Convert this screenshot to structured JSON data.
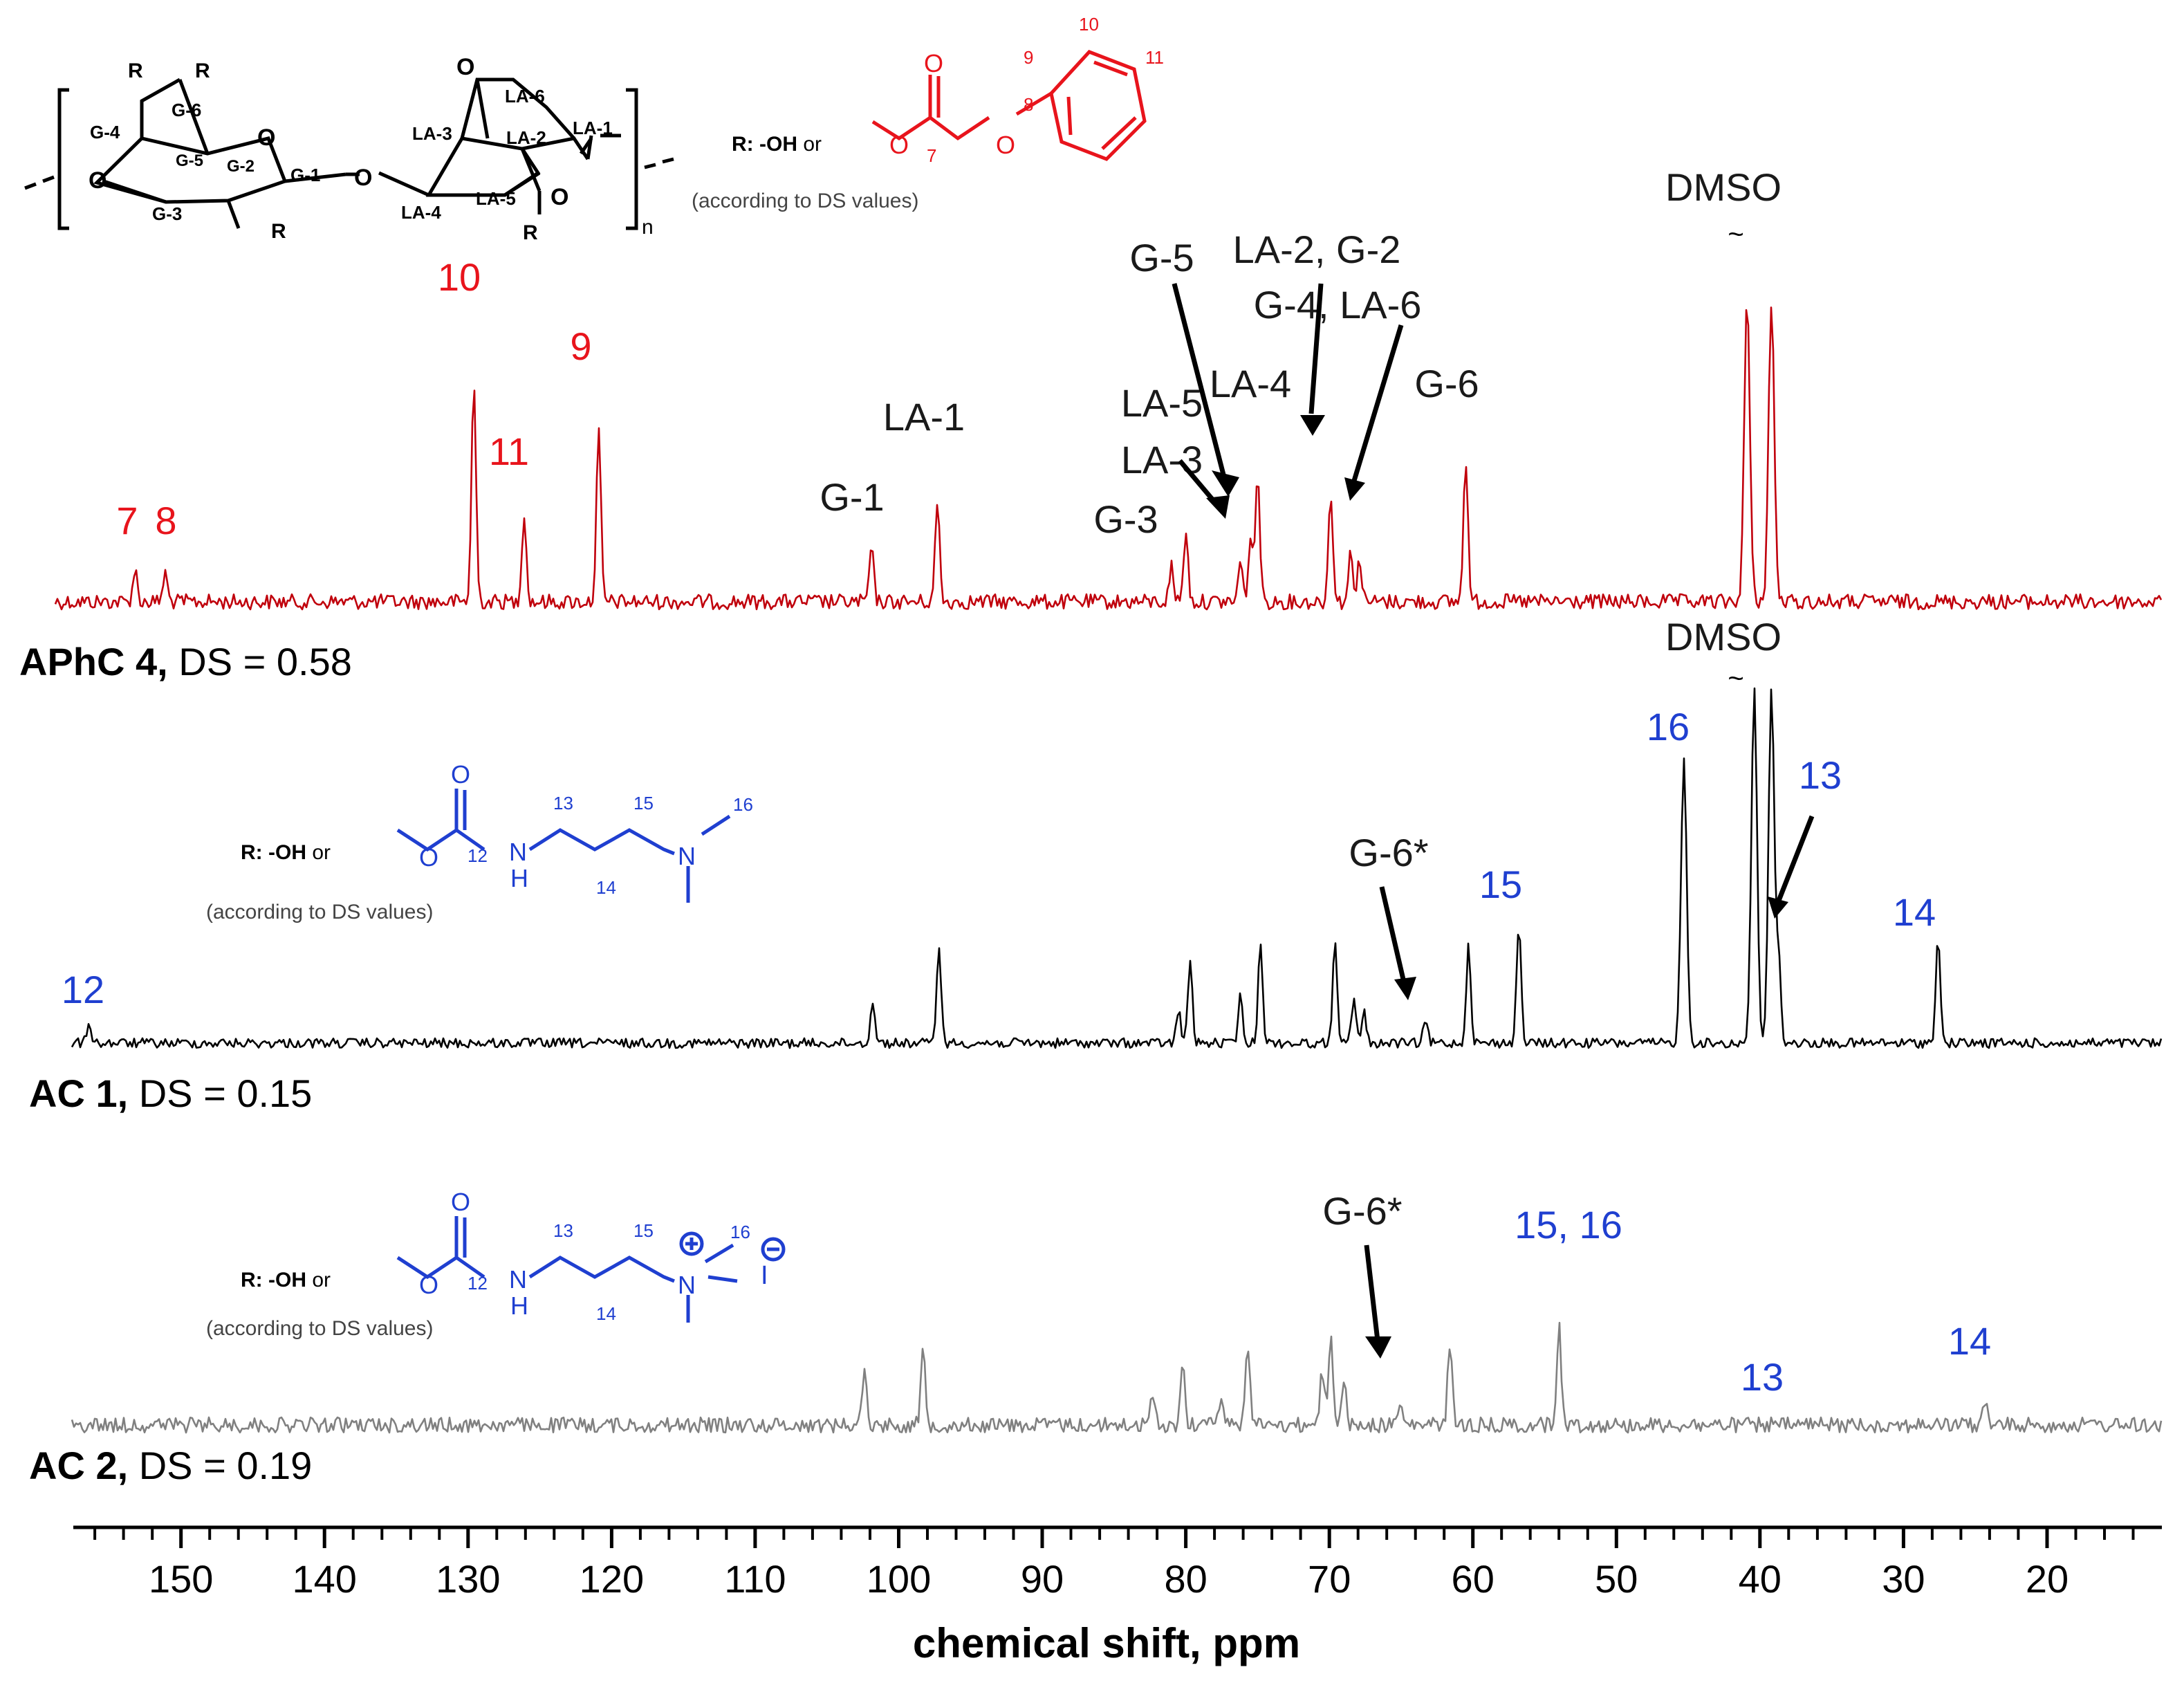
{
  "chart_data": {
    "type": "line",
    "xlabel": "chemical shift, ppm",
    "x_reversed": true,
    "xlim": [
      157.5,
      12
    ],
    "ticks": [
      150,
      140,
      130,
      120,
      110,
      100,
      90,
      80,
      70,
      60,
      50,
      40,
      30,
      20
    ],
    "tick_labels": [
      "150",
      "140",
      "130",
      "120",
      "110",
      "100",
      "90",
      "80",
      "70",
      "60",
      "50",
      "40",
      "30",
      "20"
    ],
    "colors": {
      "aphc": "#c0000c",
      "ac1": "#000000",
      "ac2": "#808080",
      "red_label": "#e8141c",
      "blue_label": "#1f3fd0",
      "black_label": "#1a1a1a"
    },
    "series": [
      {
        "name": "APhC 4",
        "label_bold": "APhC 4,",
        "label_rest": " DS = 0.58",
        "peaks": [
          {
            "ppm": 153.2,
            "h": 0.09
          },
          {
            "ppm": 151.1,
            "h": 0.08
          },
          {
            "ppm": 129.6,
            "h": 0.62
          },
          {
            "ppm": 126.1,
            "h": 0.25
          },
          {
            "ppm": 120.9,
            "h": 0.48
          },
          {
            "ppm": 101.9,
            "h": 0.15
          },
          {
            "ppm": 97.3,
            "h": 0.28
          },
          {
            "ppm": 81.0,
            "h": 0.1
          },
          {
            "ppm": 80.0,
            "h": 0.2
          },
          {
            "ppm": 76.2,
            "h": 0.11
          },
          {
            "ppm": 75.5,
            "h": 0.17
          },
          {
            "ppm": 75.0,
            "h": 0.37
          },
          {
            "ppm": 69.9,
            "h": 0.31
          },
          {
            "ppm": 68.5,
            "h": 0.14
          },
          {
            "ppm": 67.9,
            "h": 0.12
          },
          {
            "ppm": 60.5,
            "h": 0.41
          },
          {
            "ppm": 40.9,
            "h": 0.85
          },
          {
            "ppm": 39.2,
            "h": 0.85
          }
        ],
        "labels": [
          {
            "text": "7",
            "ppm": 153.2,
            "color": "red"
          },
          {
            "text": "8",
            "ppm": 151.1,
            "color": "red"
          },
          {
            "text": "10",
            "ppm": 129.6,
            "color": "red"
          },
          {
            "text": "11",
            "ppm": 126.1,
            "color": "red"
          },
          {
            "text": "9",
            "ppm": 120.9,
            "color": "red"
          },
          {
            "text": "G-1",
            "ppm": 101.9,
            "color": "black"
          },
          {
            "text": "LA-1",
            "ppm": 97.3,
            "color": "black"
          },
          {
            "text": "LA-5",
            "ppm": 80.0,
            "color": "black"
          },
          {
            "text": "LA-3",
            "ppm": 80.0,
            "color": "black"
          },
          {
            "text": "G-3",
            "ppm": 80.5,
            "color": "black"
          },
          {
            "text": "G-5",
            "ppm": 80.0,
            "color": "black"
          },
          {
            "text": "LA-4",
            "ppm": 74.0,
            "color": "black"
          },
          {
            "text": "LA-2, G-2",
            "ppm": 66.0,
            "color": "black"
          },
          {
            "text": "G-4, LA-6",
            "ppm": 64.0,
            "color": "black"
          },
          {
            "text": "G-6",
            "ppm": 60.5,
            "color": "black"
          },
          {
            "text": "DMSO",
            "ppm": 40.0,
            "color": "black"
          }
        ]
      },
      {
        "name": "AC 1",
        "label_bold": "AC 1,",
        "label_rest": " DS = 0.15",
        "peaks": [
          {
            "ppm": 156.4,
            "h": 0.06
          },
          {
            "ppm": 101.8,
            "h": 0.12
          },
          {
            "ppm": 97.2,
            "h": 0.28
          },
          {
            "ppm": 80.5,
            "h": 0.09
          },
          {
            "ppm": 79.7,
            "h": 0.23
          },
          {
            "ppm": 76.2,
            "h": 0.13
          },
          {
            "ppm": 74.8,
            "h": 0.29
          },
          {
            "ppm": 69.6,
            "h": 0.29
          },
          {
            "ppm": 68.3,
            "h": 0.12
          },
          {
            "ppm": 67.6,
            "h": 0.09
          },
          {
            "ppm": 63.3,
            "h": 0.06
          },
          {
            "ppm": 60.3,
            "h": 0.28
          },
          {
            "ppm": 56.8,
            "h": 0.34
          },
          {
            "ppm": 45.3,
            "h": 0.8
          },
          {
            "ppm": 40.4,
            "h": 1.0
          },
          {
            "ppm": 39.2,
            "h": 1.0
          },
          {
            "ppm": 38.7,
            "h": 0.25
          },
          {
            "ppm": 27.6,
            "h": 0.3
          }
        ],
        "labels": [
          {
            "text": "12",
            "ppm": 156.4,
            "color": "blue"
          },
          {
            "text": "G-6*",
            "ppm": 63.3,
            "color": "black"
          },
          {
            "text": "15",
            "ppm": 56.8,
            "color": "blue"
          },
          {
            "text": "16",
            "ppm": 45.3,
            "color": "blue"
          },
          {
            "text": "DMSO",
            "ppm": 40.0,
            "color": "black"
          },
          {
            "text": "13",
            "ppm": 38.7,
            "color": "blue"
          },
          {
            "text": "14",
            "ppm": 27.6,
            "color": "blue"
          }
        ]
      },
      {
        "name": "AC 2",
        "label_bold": "AC 2,",
        "label_rest": " DS = 0.19",
        "peaks": [
          {
            "ppm": 102.4,
            "h": 0.27
          },
          {
            "ppm": 98.3,
            "h": 0.36
          },
          {
            "ppm": 82.3,
            "h": 0.14
          },
          {
            "ppm": 80.2,
            "h": 0.3
          },
          {
            "ppm": 78.3,
            "h": 0.07
          },
          {
            "ppm": 77.5,
            "h": 0.16
          },
          {
            "ppm": 75.7,
            "h": 0.41
          },
          {
            "ppm": 70.5,
            "h": 0.26
          },
          {
            "ppm": 69.9,
            "h": 0.45
          },
          {
            "ppm": 69.0,
            "h": 0.22
          },
          {
            "ppm": 65.1,
            "h": 0.1
          },
          {
            "ppm": 61.6,
            "h": 0.4
          },
          {
            "ppm": 54.0,
            "h": 0.48
          },
          {
            "ppm": 24.3,
            "h": 0.11
          }
        ],
        "labels": [
          {
            "text": "G-6*",
            "ppm": 65.1,
            "color": "black"
          },
          {
            "text": "15, 16",
            "ppm": 54.0,
            "color": "blue"
          },
          {
            "text": "13",
            "ppm": 38.7,
            "color": "blue"
          },
          {
            "text": "14",
            "ppm": 24.3,
            "color": "blue"
          }
        ]
      }
    ]
  },
  "structures": {
    "main": {
      "atom_labels": [
        "R",
        "R",
        "G-6",
        "G-4",
        "O",
        "G-5",
        "G-2",
        "G-1",
        "O",
        "O",
        "G-3",
        "R",
        "O",
        "LA-6",
        "LA-3",
        "LA-2",
        "LA-1",
        "LA-4",
        "LA-5",
        "O",
        "R",
        "n"
      ],
      "r_prefix": "R: -OH",
      "r_or": " or",
      "ds_note": "(according to DS values)"
    },
    "phenyl": {
      "nums": [
        "10",
        "9",
        "11",
        "8",
        "7"
      ],
      "o_labels": [
        "O",
        "O",
        "O"
      ]
    },
    "amine": {
      "r_prefix": "R: -OH",
      "r_or": " or",
      "ds_note": "(according to DS values)",
      "nums": [
        "13",
        "15",
        "16",
        "12",
        "14"
      ],
      "atoms": [
        "O",
        "O",
        "N",
        "H",
        "N"
      ]
    },
    "ammonium": {
      "r_prefix": "R: -OH",
      "r_or": " or",
      "ds_note": "(according to DS values)",
      "nums": [
        "13",
        "15",
        "16",
        "12",
        "14"
      ],
      "atoms": [
        "O",
        "O",
        "N",
        "H",
        "N",
        "I"
      ],
      "charges": [
        "+",
        "−"
      ]
    }
  },
  "misc": {
    "tilde": "~"
  }
}
